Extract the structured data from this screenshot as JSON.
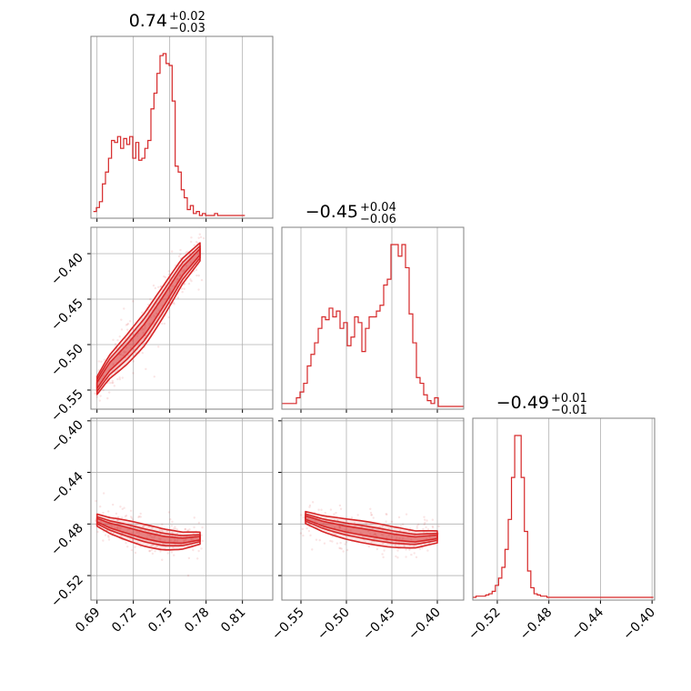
{
  "chart_data": {
    "type": "corner",
    "color": "#d62728",
    "grid": true,
    "parameters": [
      {
        "range": [
          0.685,
          0.835
        ],
        "ticks": [
          "0.69",
          "0.72",
          "0.75",
          "0.78",
          "0.81"
        ],
        "tick_values": [
          0.69,
          0.72,
          0.75,
          0.78,
          0.81
        ],
        "title_main": "0.74",
        "title_plus": "+0.02",
        "title_minus": "−0.03",
        "hist": {
          "edges_start": 0.687,
          "bin_width": 0.0025,
          "counts": [
            2,
            4,
            7,
            16,
            22,
            29,
            38,
            37,
            40,
            34,
            39,
            36,
            40,
            29,
            37,
            28,
            29,
            34,
            38,
            54,
            62,
            72,
            81,
            82,
            77,
            76,
            58,
            25,
            22,
            13,
            9,
            3,
            5,
            1,
            2,
            0,
            1,
            0,
            0,
            0,
            1,
            0,
            0,
            0,
            0,
            0,
            0,
            0,
            0,
            0
          ]
        }
      },
      {
        "range": [
          -0.571,
          -0.371
        ],
        "ticks": [
          "−0.55",
          "−0.50",
          "−0.45",
          "−0.40"
        ],
        "tick_values": [
          -0.55,
          -0.5,
          -0.45,
          -0.4
        ],
        "title_main": "−0.45",
        "title_plus": "+0.04",
        "title_minus": "−0.06",
        "hist": {
          "edges_start": -0.571,
          "bin_width": 0.004,
          "counts": [
            1,
            1,
            1,
            1,
            3,
            5,
            8,
            14,
            18,
            22,
            27,
            31,
            30,
            34,
            31,
            33,
            27,
            29,
            21,
            24,
            31,
            29,
            19,
            27,
            31,
            31,
            33,
            35,
            42,
            44,
            56,
            56,
            52,
            56,
            48,
            32,
            22,
            10,
            8,
            4,
            2,
            1,
            3,
            0,
            0,
            0,
            0,
            0,
            0,
            0
          ]
        }
      },
      {
        "range": [
          -0.539,
          -0.398
        ],
        "ticks": [
          "−0.52",
          "−0.48",
          "−0.44",
          "−0.40"
        ],
        "tick_values": [
          -0.52,
          -0.48,
          -0.44,
          -0.4
        ],
        "title_main": "−0.49",
        "title_plus": "+0.01",
        "title_minus": "−0.01",
        "hist": {
          "edges_start": -0.539,
          "bin_width": 0.0025,
          "counts": [
            0,
            1,
            1,
            1,
            2,
            3,
            5,
            10,
            16,
            25,
            40,
            65,
            100,
            135,
            135,
            100,
            55,
            22,
            8,
            3,
            2,
            1,
            1,
            0,
            0,
            0,
            0,
            0,
            0,
            0,
            0,
            0,
            0,
            0,
            0,
            0,
            0,
            0,
            0,
            0,
            0,
            0,
            0,
            0,
            0,
            0,
            0,
            0,
            0,
            0,
            0,
            0,
            0,
            0,
            0,
            0
          ]
        }
      }
    ],
    "joint": [
      {
        "x_param": 0,
        "y_param": 1,
        "ridge": [
          [
            0.69,
            -0.545
          ],
          [
            0.7,
            -0.525
          ],
          [
            0.715,
            -0.505
          ],
          [
            0.73,
            -0.482
          ],
          [
            0.745,
            -0.452
          ],
          [
            0.76,
            -0.42
          ],
          [
            0.775,
            -0.398
          ]
        ],
        "widths": [
          0.006,
          0.012,
          0.018
        ]
      },
      {
        "x_param": 0,
        "y_param": 2,
        "ridge": [
          [
            0.69,
            -0.477
          ],
          [
            0.7,
            -0.481
          ],
          [
            0.715,
            -0.485
          ],
          [
            0.73,
            -0.489
          ],
          [
            0.745,
            -0.492
          ],
          [
            0.76,
            -0.493
          ],
          [
            0.775,
            -0.491
          ]
        ],
        "widths": [
          0.0025,
          0.005,
          0.0085
        ]
      },
      {
        "x_param": 1,
        "y_param": 2,
        "ridge": [
          [
            -0.545,
            -0.475
          ],
          [
            -0.525,
            -0.48
          ],
          [
            -0.5,
            -0.484
          ],
          [
            -0.475,
            -0.487
          ],
          [
            -0.45,
            -0.49
          ],
          [
            -0.425,
            -0.492
          ],
          [
            -0.4,
            -0.49
          ]
        ],
        "widths": [
          0.0025,
          0.005,
          0.0085
        ]
      }
    ]
  }
}
